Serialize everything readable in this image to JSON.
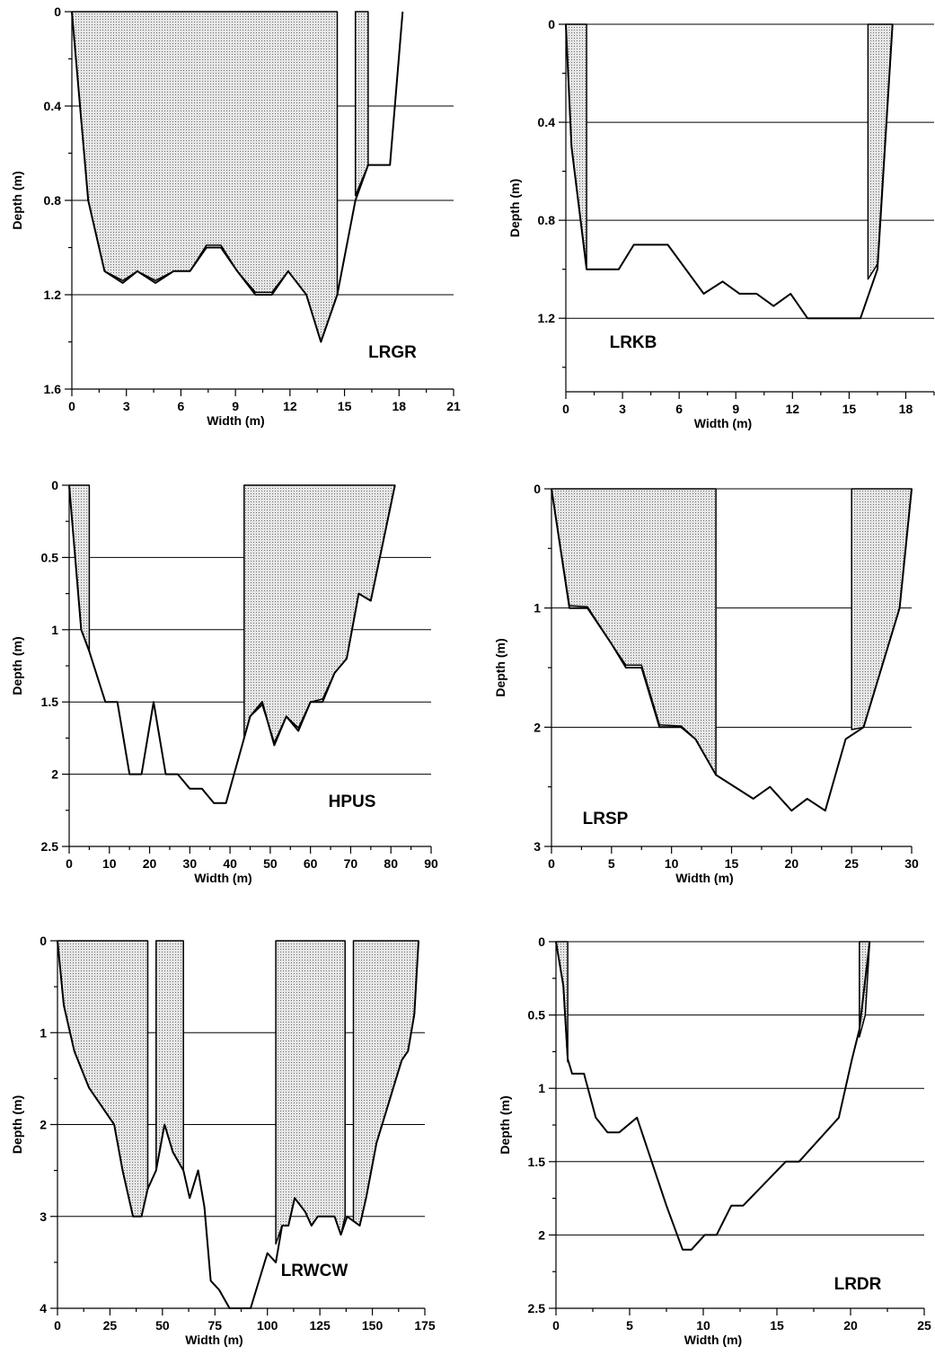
{
  "chart_data": [
    {
      "type": "area",
      "label": "LRGR",
      "xlabel": "Width (m)",
      "ylabel": "Depth (m)",
      "xlim": [
        0,
        21
      ],
      "ylim": [
        0,
        1.6
      ],
      "y_inverted": true,
      "xticks": [
        0,
        3,
        6,
        9,
        12,
        15,
        18,
        21
      ],
      "yticks": [
        0,
        0.4,
        0.8,
        1.2,
        1.6
      ],
      "grid_y": [
        0.4,
        0.8,
        1.2
      ],
      "bed_profile": {
        "x": [
          0,
          0.9,
          1.8,
          2.8,
          3.6,
          4.6,
          5.6,
          6.5,
          7.4,
          8.2,
          9.1,
          10.1,
          11,
          11.9,
          12.9,
          13.7,
          14.6,
          15.6,
          16.3,
          17.5,
          18.2
        ],
        "y": [
          0,
          0.8,
          1.1,
          1.15,
          1.1,
          1.15,
          1.1,
          1.1,
          1.0,
          1.0,
          1.1,
          1.2,
          1.2,
          1.1,
          1.2,
          1.4,
          1.2,
          0.8,
          0.65,
          0.65,
          0
        ]
      },
      "shaded_regions": [
        {
          "x": [
            0,
            0.9,
            1.8,
            2.8,
            3.6,
            4.6,
            5.6,
            6.5,
            7.4,
            8.2,
            9.1,
            10.1,
            11,
            11.9,
            12.9,
            13.7,
            14.6
          ],
          "y": [
            0,
            0.8,
            1.1,
            1.14,
            1.1,
            1.14,
            1.1,
            1.1,
            0.99,
            0.99,
            1.1,
            1.19,
            1.19,
            1.1,
            1.2,
            1.4,
            1.2
          ],
          "top": 0
        },
        {
          "x": [
            15.6,
            16.3
          ],
          "y": [
            0.78,
            0.65
          ],
          "top": 0
        }
      ]
    },
    {
      "type": "area",
      "label": "LRKB",
      "xlabel": "Width (m)",
      "ylabel": "Depth (m)",
      "xlim": [
        0,
        19.5
      ],
      "ylim": [
        0,
        1.5
      ],
      "y_inverted": true,
      "xticks": [
        0,
        3,
        6,
        9,
        12,
        15,
        18
      ],
      "yticks": [
        0,
        0.4,
        0.8,
        1.2
      ],
      "grid_y": [
        0,
        0.4,
        0.8,
        1.2
      ],
      "bed_profile": {
        "x": [
          0,
          0.3,
          1.1,
          2.8,
          3.6,
          5.4,
          7.3,
          8.3,
          9.2,
          10.1,
          11,
          11.9,
          12.8,
          14.6,
          15.6,
          16.5,
          17.3
        ],
        "y": [
          0,
          0.5,
          1.0,
          1.0,
          0.9,
          0.9,
          1.1,
          1.05,
          1.1,
          1.1,
          1.15,
          1.1,
          1.2,
          1.2,
          1.2,
          1.0,
          0
        ]
      },
      "shaded_regions": [
        {
          "x": [
            0,
            0.3,
            1.1
          ],
          "y": [
            0,
            0.5,
            0.99
          ],
          "top": 0
        },
        {
          "x": [
            16.0,
            16.5,
            17.3
          ],
          "y": [
            1.04,
            0.98,
            0
          ],
          "top": 0
        }
      ]
    },
    {
      "type": "area",
      "label": "HPUS",
      "xlabel": "Width (m)",
      "ylabel": "Depth (m)",
      "xlim": [
        0,
        90
      ],
      "ylim": [
        0,
        2.5
      ],
      "y_inverted": true,
      "xticks": [
        0,
        10,
        20,
        30,
        40,
        50,
        60,
        70,
        80,
        90
      ],
      "yticks": [
        0,
        0.5,
        1,
        1.5,
        2,
        2.5
      ],
      "grid_y": [
        0.5,
        1,
        1.5,
        2
      ],
      "bed_profile": {
        "x": [
          0,
          3,
          5,
          9,
          12,
          15,
          18,
          21,
          24,
          27,
          30,
          33,
          36,
          39,
          42,
          45,
          48,
          51,
          54,
          57,
          60,
          63,
          66,
          69,
          72,
          75,
          78,
          81
        ],
        "y": [
          0,
          1.0,
          1.15,
          1.5,
          1.5,
          2.0,
          2.0,
          1.5,
          2.0,
          2.0,
          2.1,
          2.1,
          2.2,
          2.2,
          1.9,
          1.6,
          1.5,
          1.8,
          1.6,
          1.7,
          1.5,
          1.5,
          1.3,
          1.2,
          0.75,
          0.8,
          0.4,
          0
        ]
      },
      "shaded_regions": [
        {
          "x": [
            0,
            3,
            5
          ],
          "y": [
            0,
            1.0,
            1.15
          ],
          "top": 0
        },
        {
          "x": [
            43.5,
            45,
            48,
            51,
            54,
            57,
            60,
            63,
            66,
            69,
            72,
            75,
            78,
            81
          ],
          "y": [
            1.75,
            1.6,
            1.52,
            1.78,
            1.6,
            1.68,
            1.5,
            1.48,
            1.3,
            1.2,
            0.75,
            0.8,
            0.4,
            0
          ],
          "top": 0
        }
      ]
    },
    {
      "type": "area",
      "label": "LRSP",
      "xlabel": "Width (m)",
      "ylabel": "Depth (m)",
      "xlim": [
        0,
        30
      ],
      "ylim": [
        0,
        3
      ],
      "y_inverted": true,
      "xticks": [
        0,
        5,
        10,
        15,
        20,
        25,
        30
      ],
      "yticks": [
        0,
        1,
        2,
        3
      ],
      "grid_y": [
        0,
        1,
        2
      ],
      "bed_profile": {
        "x": [
          0,
          1.5,
          3,
          5,
          6.2,
          7.5,
          9,
          10.8,
          12,
          13.7,
          16.8,
          18.2,
          20,
          21.3,
          22.8,
          24.5,
          26,
          29,
          30
        ],
        "y": [
          0,
          1.0,
          1.0,
          1.3,
          1.5,
          1.5,
          2.0,
          2.0,
          2.1,
          2.4,
          2.6,
          2.5,
          2.7,
          2.6,
          2.7,
          2.1,
          2.0,
          1.0,
          0
        ]
      },
      "shaded_regions": [
        {
          "x": [
            0,
            1.5,
            3,
            5,
            6.2,
            7.5,
            9,
            10.8,
            12,
            13.7
          ],
          "y": [
            0,
            0.98,
            0.99,
            1.3,
            1.48,
            1.48,
            1.98,
            1.99,
            2.1,
            2.4
          ],
          "top": 0
        },
        {
          "x": [
            25.0,
            26,
            29,
            30
          ],
          "y": [
            2.02,
            2.0,
            1.0,
            0
          ],
          "top": 0
        }
      ]
    },
    {
      "type": "area",
      "label": "LRWCW",
      "xlabel": "Width (m)",
      "ylabel": "Depth (m)",
      "xlim": [
        0,
        175
      ],
      "ylim": [
        0,
        4
      ],
      "y_inverted": true,
      "xticks": [
        0,
        25,
        50,
        75,
        100,
        125,
        150,
        175
      ],
      "yticks": [
        0,
        1,
        2,
        3,
        4
      ],
      "grid_y": [
        1,
        2,
        3
      ],
      "bed_profile": {
        "x": [
          0,
          3,
          8,
          15,
          27,
          31,
          36,
          40,
          43,
          47,
          51,
          55,
          60,
          63,
          67,
          70,
          73,
          77,
          82,
          92,
          100,
          104,
          107,
          110,
          113,
          118,
          121,
          124,
          128,
          132,
          135,
          138,
          141,
          144,
          147,
          152,
          156,
          160,
          164,
          167,
          170,
          172
        ],
        "y": [
          0,
          0.7,
          1.2,
          1.6,
          2.0,
          2.5,
          3.0,
          3.0,
          2.7,
          2.5,
          2.0,
          2.3,
          2.5,
          2.8,
          2.5,
          2.9,
          3.7,
          3.8,
          4.0,
          4.0,
          3.4,
          3.5,
          3.1,
          3.1,
          2.8,
          2.95,
          3.1,
          3.0,
          3.0,
          3.0,
          3.2,
          3.0,
          3.05,
          3.1,
          2.8,
          2.2,
          1.9,
          1.6,
          1.3,
          1.2,
          0.8,
          0
        ]
      },
      "shaded_regions": [
        {
          "x": [
            0,
            3,
            8,
            15,
            27,
            31,
            36,
            40,
            43
          ],
          "y": [
            0,
            0.7,
            1.2,
            1.6,
            2.0,
            2.5,
            3.0,
            3.0,
            2.7
          ],
          "top": 0
        },
        {
          "x": [
            47,
            51,
            55,
            60
          ],
          "y": [
            2.5,
            2.0,
            2.3,
            2.5
          ],
          "top": 0
        },
        {
          "x": [
            104,
            107,
            110,
            113,
            118,
            121,
            124,
            128,
            132,
            135,
            137
          ],
          "y": [
            3.3,
            3.1,
            3.1,
            2.8,
            2.95,
            3.1,
            3.0,
            3.0,
            3.0,
            3.2,
            3.0
          ],
          "top": 0
        },
        {
          "x": [
            141,
            144,
            147,
            152,
            156,
            160,
            164,
            167,
            170,
            172
          ],
          "y": [
            3.05,
            3.1,
            2.8,
            2.2,
            1.9,
            1.6,
            1.3,
            1.2,
            0.8,
            0
          ],
          "top": 0
        }
      ]
    },
    {
      "type": "area",
      "label": "LRDR",
      "xlabel": "Width (m)",
      "ylabel": "Depth (m)",
      "xlim": [
        0,
        25
      ],
      "ylim": [
        0,
        2.5
      ],
      "y_inverted": true,
      "xticks": [
        0,
        5,
        10,
        15,
        20,
        25
      ],
      "yticks": [
        0,
        0.5,
        1,
        1.5,
        2,
        2.5
      ],
      "grid_y": [
        0,
        0.5,
        1,
        1.5,
        2
      ],
      "bed_profile": {
        "x": [
          0,
          0.5,
          0.8,
          1.1,
          1.9,
          2.7,
          3.5,
          4.3,
          5.5,
          6.5,
          7.5,
          8.6,
          9.2,
          10.1,
          10.9,
          11.9,
          12.7,
          15.6,
          16.5,
          19.2,
          20.1,
          20.6,
          21.3
        ],
        "y": [
          0,
          0.3,
          0.8,
          0.9,
          0.9,
          1.2,
          1.3,
          1.3,
          1.2,
          1.5,
          1.8,
          2.1,
          2.1,
          2.0,
          2.0,
          1.8,
          1.8,
          1.5,
          1.5,
          1.2,
          0.8,
          0.6,
          0
        ]
      },
      "shaded_regions": [
        {
          "x": [
            0,
            0.5,
            0.8
          ],
          "y": [
            0,
            0.3,
            0.82
          ],
          "top": 0
        },
        {
          "x": [
            20.6,
            21.0,
            21.3
          ],
          "y": [
            0.65,
            0.5,
            0
          ],
          "top": 0
        }
      ]
    }
  ]
}
